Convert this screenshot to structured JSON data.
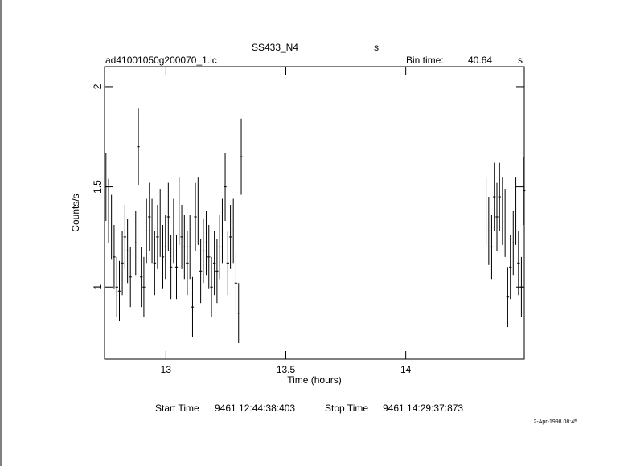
{
  "chart_data": {
    "type": "errorbar",
    "title": "SS433_N4",
    "title_unit": "s",
    "file": "ad41001050g200070_1.lc",
    "bin_label": "Bin time:",
    "bin_time": "40.64",
    "bin_unit": "s",
    "xlabel": "Time (hours)",
    "ylabel": "Counts/s",
    "start_label": "Start Time",
    "start_time": "9461 12:44:38:403",
    "stop_label": "Stop Time",
    "stop_time": "9461 14:29:37:873",
    "date": "2-Apr-1998 08:45",
    "xlim": [
      12.744,
      14.494
    ],
    "ylim": [
      0.64,
      2.1
    ],
    "xticks": [
      13,
      13.5,
      14
    ],
    "yticks": [
      1,
      1.5,
      2
    ],
    "color": "#000000",
    "series": [
      {
        "x": [
          12.75,
          12.761,
          12.773,
          12.784,
          12.795,
          12.806,
          12.818,
          12.829,
          12.84,
          12.852,
          12.863,
          12.874,
          12.885,
          12.897,
          12.908,
          12.919,
          12.931,
          12.942,
          12.953,
          12.965,
          12.976,
          12.987,
          12.998,
          13.01,
          13.021,
          13.032,
          13.044,
          13.055,
          13.066,
          13.077,
          13.089,
          13.1,
          13.111,
          13.123,
          13.134,
          13.145,
          13.156,
          13.168,
          13.179,
          13.19,
          13.202,
          13.213,
          13.224,
          13.235,
          13.247,
          13.258,
          13.269,
          13.281,
          13.292,
          13.303,
          13.314
        ],
        "values": [
          1.5,
          1.38,
          1.3,
          1.15,
          1.0,
          0.98,
          1.12,
          1.25,
          1.18,
          1.05,
          1.38,
          1.22,
          1.7,
          1.05,
          1.0,
          1.28,
          1.35,
          1.28,
          1.12,
          1.25,
          1.32,
          1.15,
          1.2,
          1.35,
          1.1,
          1.28,
          1.1,
          1.38,
          1.25,
          1.2,
          1.12,
          1.2,
          0.9,
          1.35,
          1.38,
          1.08,
          1.18,
          1.22,
          1.15,
          1.0,
          1.12,
          1.08,
          1.2,
          1.28,
          1.5,
          1.12,
          1.25,
          1.28,
          1.02,
          0.87,
          1.65
        ],
        "errors": [
          0.17,
          0.16,
          0.16,
          0.16,
          0.15,
          0.15,
          0.16,
          0.16,
          0.16,
          0.15,
          0.16,
          0.16,
          0.19,
          0.15,
          0.15,
          0.16,
          0.17,
          0.16,
          0.16,
          0.16,
          0.17,
          0.16,
          0.16,
          0.17,
          0.16,
          0.16,
          0.16,
          0.17,
          0.16,
          0.16,
          0.16,
          0.16,
          0.15,
          0.17,
          0.17,
          0.16,
          0.16,
          0.16,
          0.16,
          0.15,
          0.16,
          0.16,
          0.16,
          0.16,
          0.17,
          0.16,
          0.16,
          0.16,
          0.15,
          0.15,
          0.19
        ]
      },
      {
        "x": [
          14.335,
          14.346,
          14.358,
          14.369,
          14.38,
          14.391,
          14.403,
          14.414,
          14.425,
          14.436,
          14.448,
          14.459,
          14.47,
          14.482,
          14.493
        ],
        "values": [
          1.38,
          1.28,
          1.2,
          1.45,
          1.35,
          1.45,
          1.38,
          1.32,
          0.95,
          1.1,
          1.22,
          1.38,
          1.12,
          1.0,
          1.48
        ],
        "errors": [
          0.17,
          0.17,
          0.16,
          0.17,
          0.17,
          0.17,
          0.17,
          0.17,
          0.15,
          0.16,
          0.16,
          0.17,
          0.16,
          0.15,
          0.17
        ]
      }
    ]
  }
}
